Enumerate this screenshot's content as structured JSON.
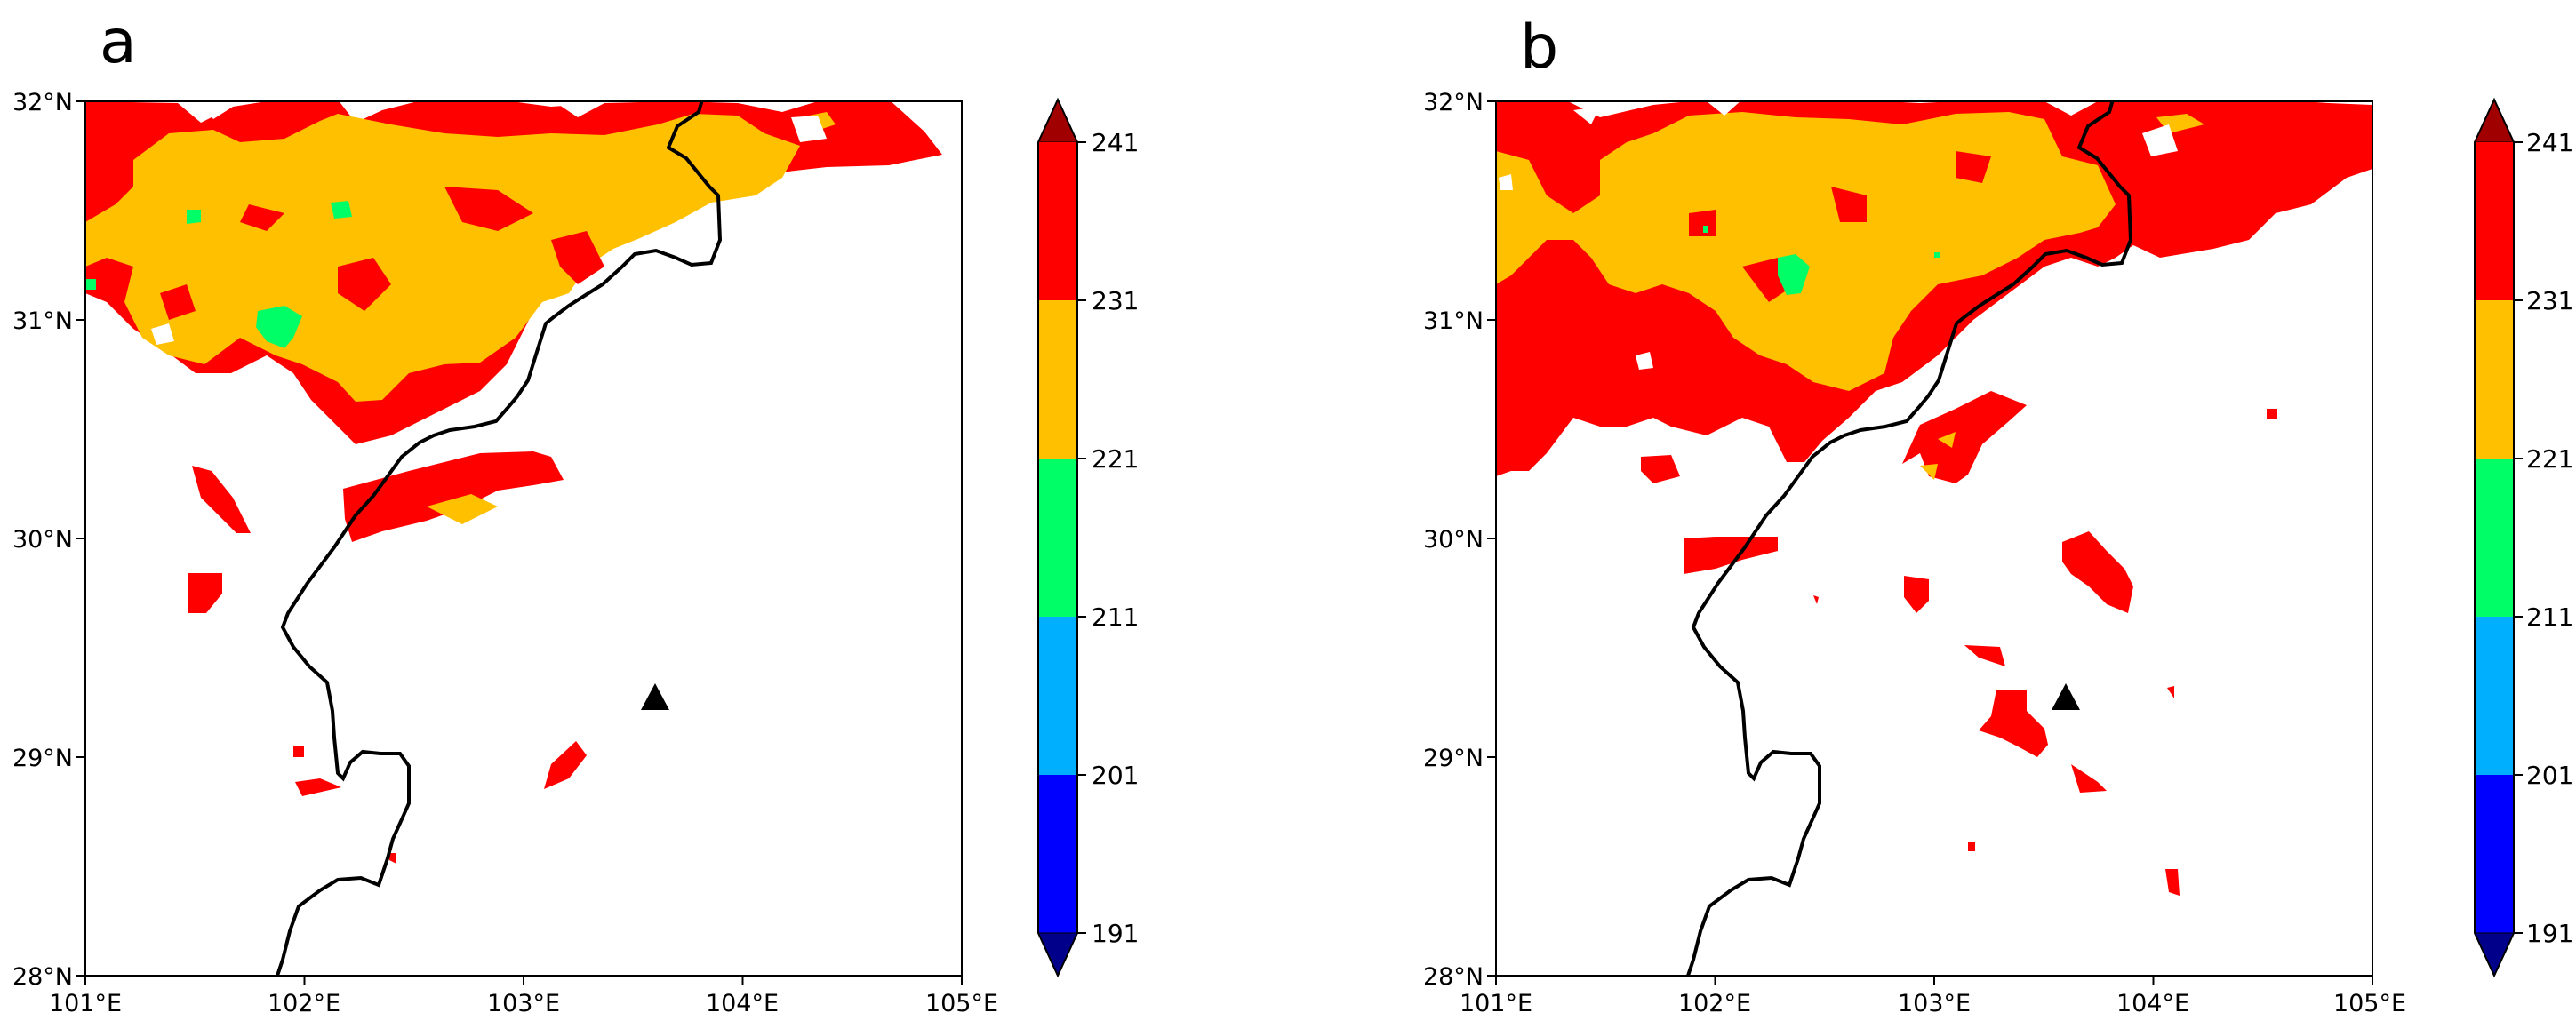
{
  "chart_data": [
    {
      "type": "heatmap",
      "panel_label": "a",
      "x_ticks": [
        "101°E",
        "102°E",
        "103°E",
        "104°E",
        "105°E"
      ],
      "y_ticks": [
        "28°N",
        "29°N",
        "30°N",
        "31°N",
        "32°N"
      ],
      "xlim": [
        101,
        105
      ],
      "ylim": [
        28,
        32
      ],
      "marker": {
        "lon": 103.6,
        "lat": 29.27,
        "shape": "triangle"
      },
      "contour_levels": [
        221,
        231,
        241
      ],
      "description_regions": [
        {
          "level": "231-241",
          "color": "#ff0000",
          "area": "north-west, broad band"
        },
        {
          "level": "221-231",
          "color": "#ffc000",
          "area": "core north-west"
        },
        {
          "level": "211-221",
          "color": "#00ff66",
          "area": "small spots"
        }
      ],
      "colorbar": {
        "levels": [
          191,
          201,
          211,
          221,
          231,
          241
        ],
        "colors": [
          "#0000ff",
          "#00b0ff",
          "#00ff66",
          "#ffc000",
          "#ff0000"
        ],
        "under_color": "#00008b",
        "over_color": "#a00000",
        "tick_labels": [
          "191",
          "201",
          "211",
          "221",
          "231",
          "241"
        ]
      }
    },
    {
      "type": "heatmap",
      "panel_label": "b",
      "x_ticks": [
        "101°E",
        "102°E",
        "103°E",
        "104°E",
        "105°E"
      ],
      "y_ticks": [
        "28°N",
        "29°N",
        "30°N",
        "31°N",
        "32°N"
      ],
      "xlim": [
        101,
        105
      ],
      "ylim": [
        28,
        32
      ],
      "marker": {
        "lon": 103.6,
        "lat": 29.27,
        "shape": "triangle"
      },
      "contour_levels": [
        221,
        231,
        241
      ],
      "colorbar": {
        "levels": [
          191,
          201,
          211,
          221,
          231,
          241
        ],
        "colors": [
          "#0000ff",
          "#00b0ff",
          "#00ff66",
          "#ffc000",
          "#ff0000"
        ],
        "under_color": "#00008b",
        "over_color": "#a00000",
        "tick_labels": [
          "191",
          "201",
          "211",
          "221",
          "231",
          "241"
        ]
      }
    }
  ]
}
